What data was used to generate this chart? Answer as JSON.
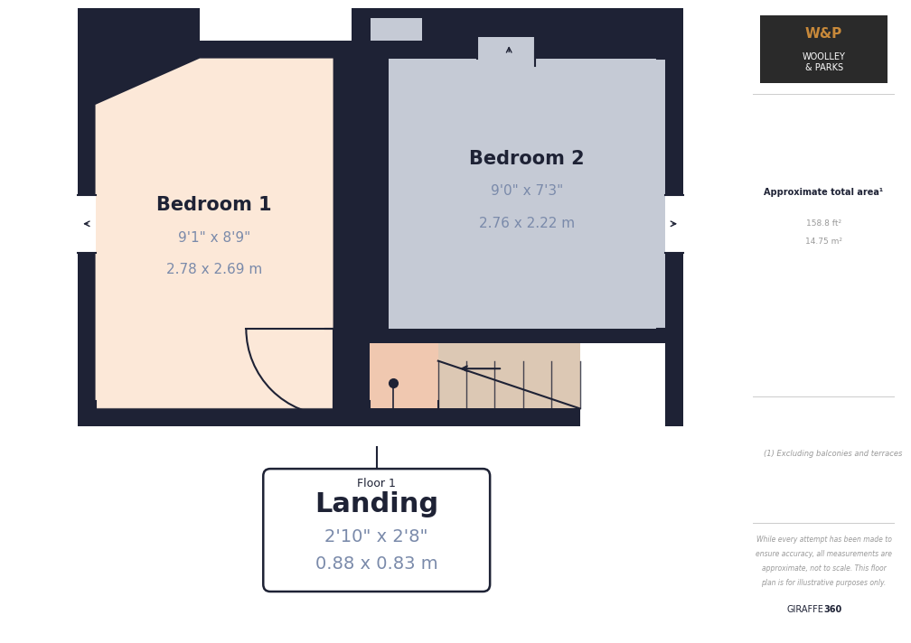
{
  "bg_color": "#ffffff",
  "wall_color": "#1e2235",
  "bedroom1": {
    "label": "Bedroom 1",
    "dim1": "9'1\" x 8'9\"",
    "dim2": "2.78 x 2.69 m",
    "fill": "#fce8d8"
  },
  "bedroom2": {
    "label": "Bedroom 2",
    "dim1": "9'0\" x 7'3\"",
    "dim2": "2.76 x 2.22 m",
    "fill": "#c5cad5"
  },
  "landing": {
    "label": "Landing",
    "dim1": "2'10\" x 2'8\"",
    "dim2": "0.88 x 0.83 m",
    "fill": "#f0c8b0"
  },
  "stair_fill": "#dcc8b4",
  "title": "Floor 1",
  "sidebar_title": "Approximate total area¹",
  "sidebar_area_ft": "158.8 ft²",
  "sidebar_area_m": "14.75 m²",
  "sidebar_note1": "(1) Excluding balconies and terraces",
  "sidebar_note2": "While every attempt has been made to\nensure accuracy, all measurements are\napproximate, not to scale. This floor\nplan is for illustrative purposes only.",
  "sidebar_brand": "GIRAFFE360",
  "text_color": "#1e2235",
  "label_color": "#7a8aaa"
}
